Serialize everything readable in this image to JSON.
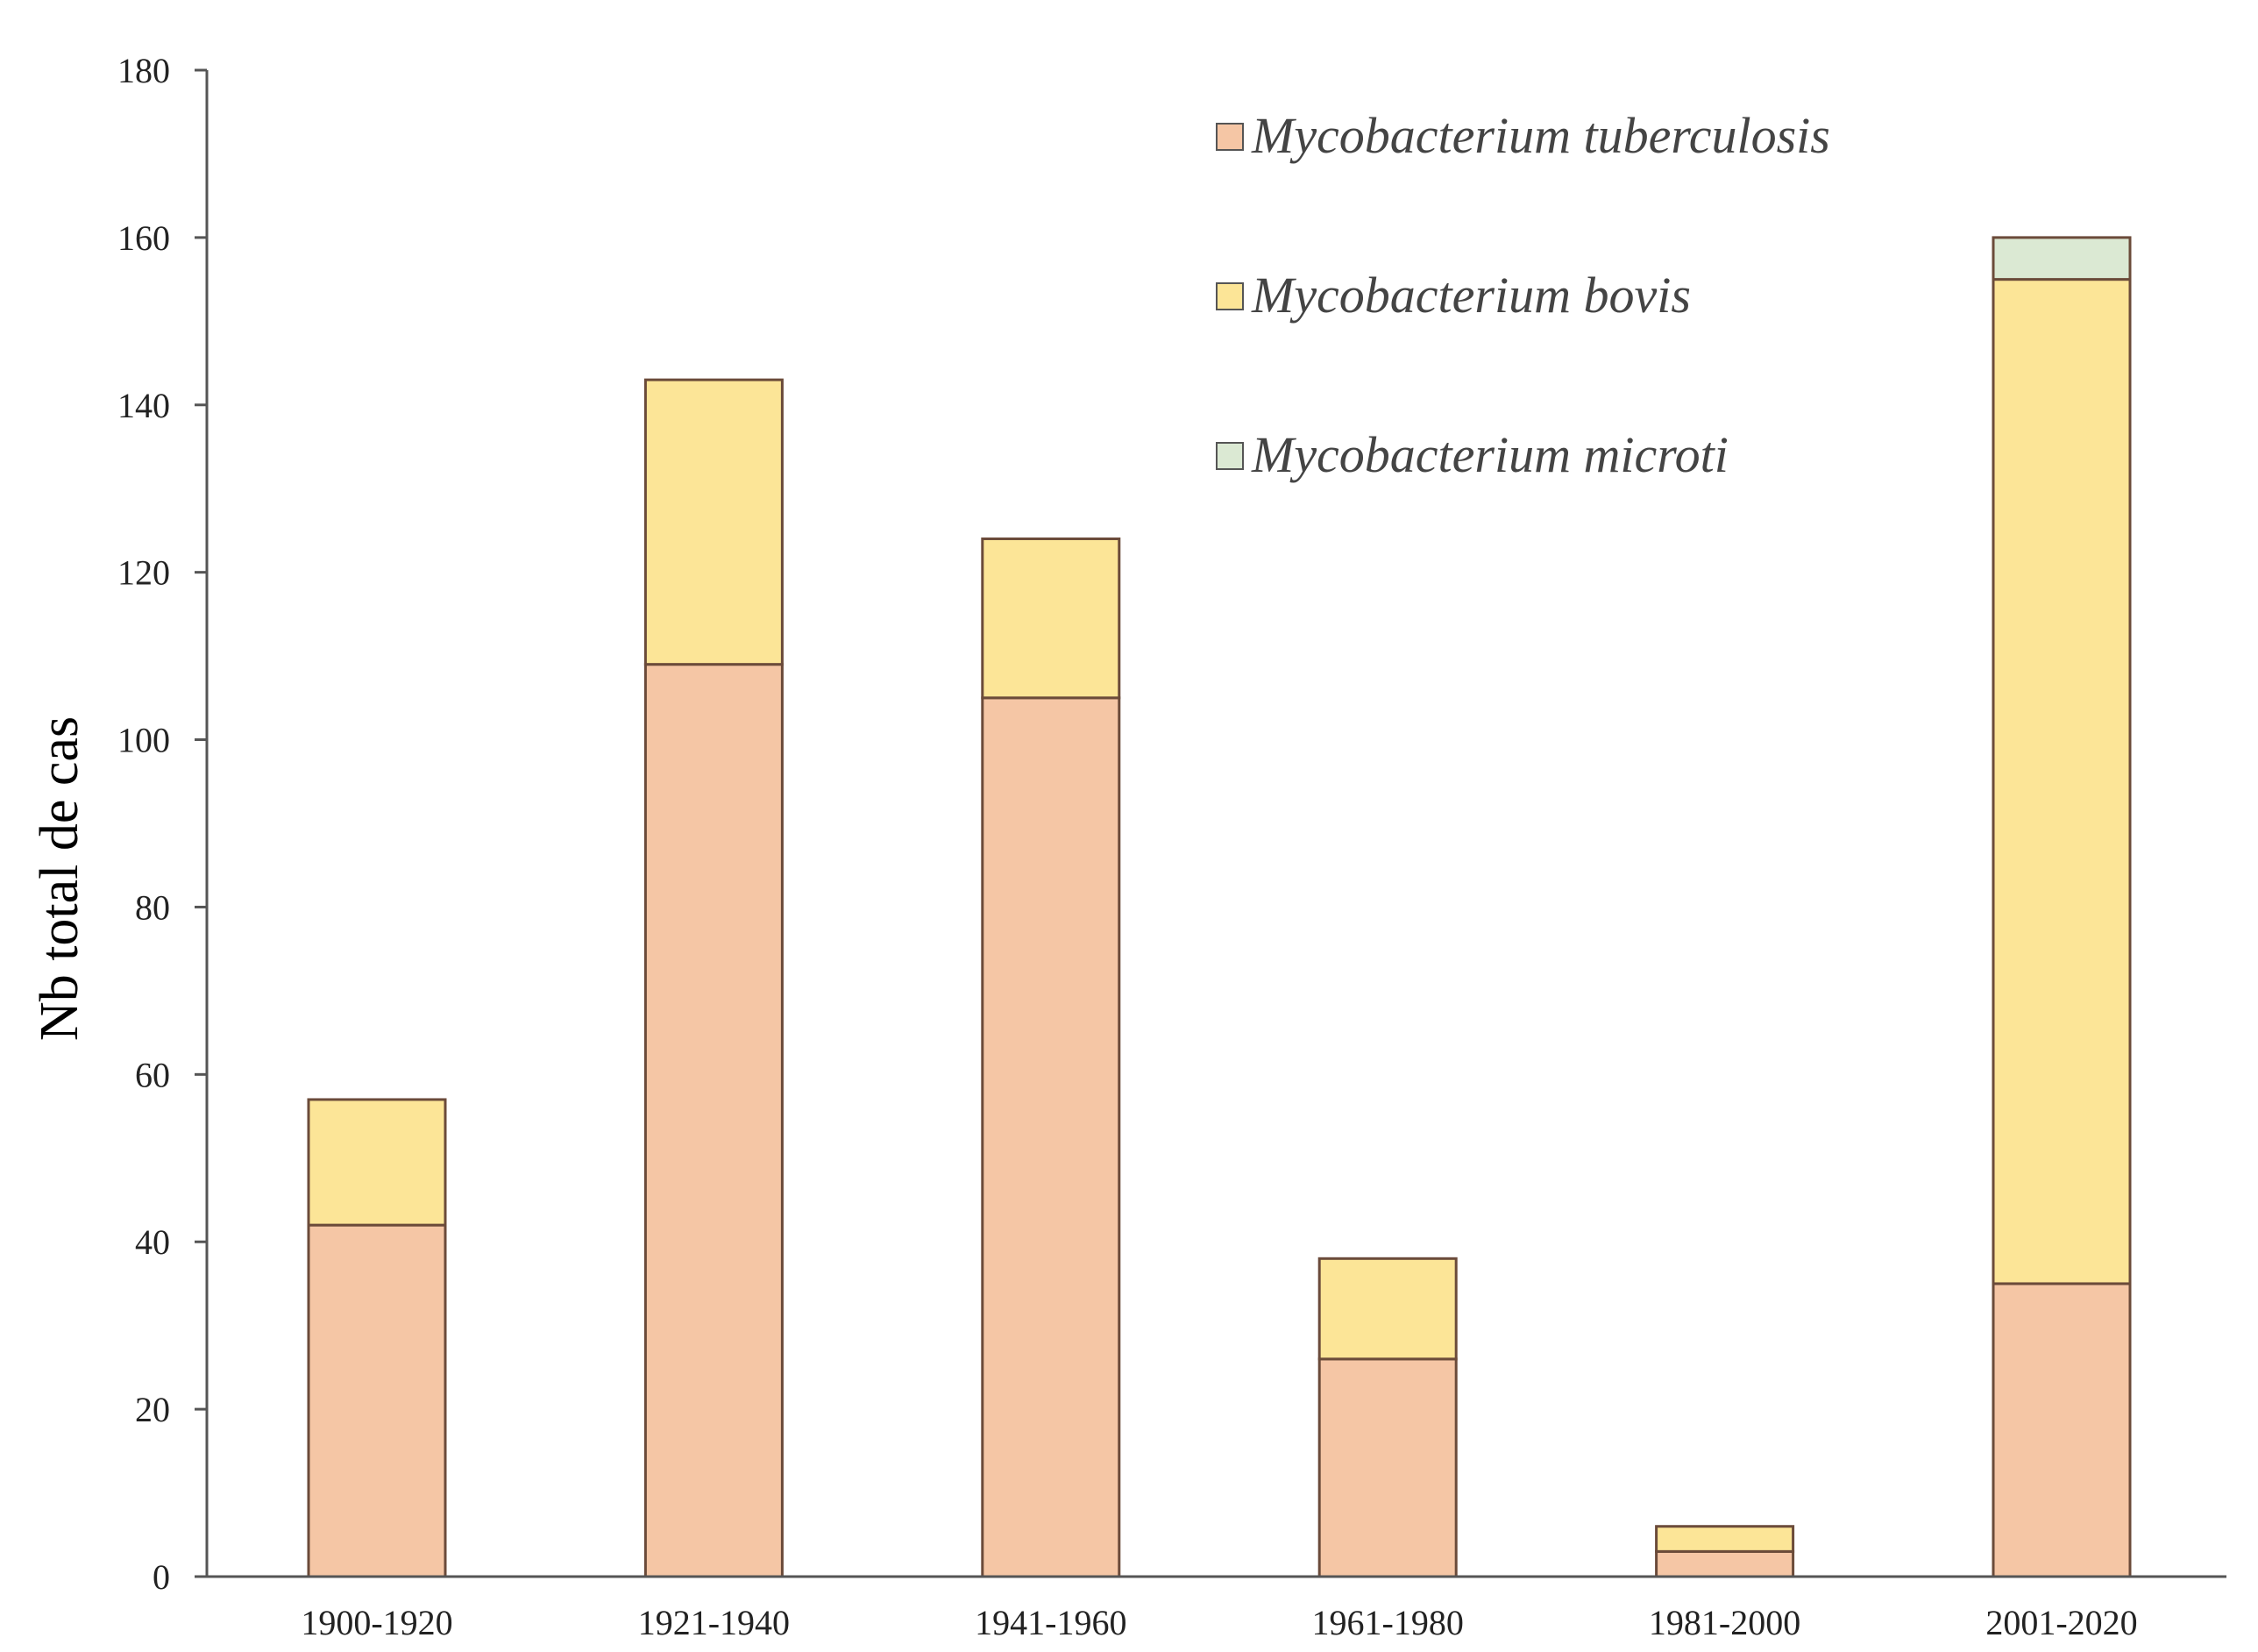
{
  "chart_data": {
    "type": "bar",
    "stacked": true,
    "title": "",
    "xlabel": "",
    "ylabel": "Nb total de cas",
    "ylim": [
      0,
      180
    ],
    "yticks": [
      0,
      20,
      40,
      60,
      80,
      100,
      120,
      140,
      160,
      180
    ],
    "categories": [
      "1900-1920",
      "1921-1940",
      "1941-1960",
      "1961-1980",
      "1981-2000",
      "2001-2020"
    ],
    "series": [
      {
        "name": "Mycobacterium tuberculosis",
        "color": "#f5c6a5",
        "values": [
          42,
          109,
          105,
          26,
          3,
          35
        ]
      },
      {
        "name": "Mycobacterium bovis",
        "color": "#fce597",
        "values": [
          15,
          34,
          19,
          12,
          3,
          120
        ]
      },
      {
        "name": "Mycobacterium microti",
        "color": "#dbe9d3",
        "values": [
          0,
          0,
          0,
          0,
          0,
          5
        ]
      }
    ],
    "grid": false,
    "legend_position": "top-right"
  }
}
